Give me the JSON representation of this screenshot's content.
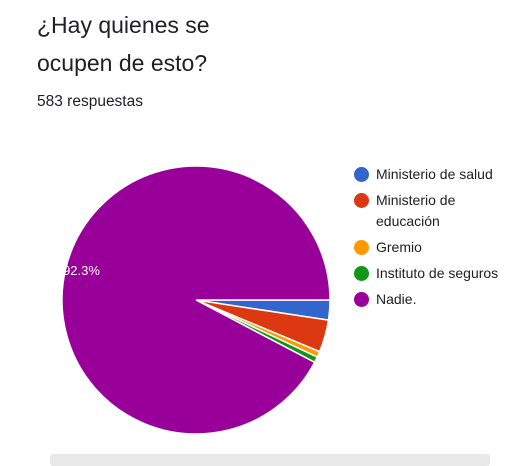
{
  "question": {
    "title": "¿Hay quienes se ocupen de esto?",
    "responses": "583 respuestas"
  },
  "chart_data": {
    "type": "pie",
    "categories": [
      "Ministerio de salud",
      "Ministerio de educación",
      "Gremio",
      "Instituto de seguros",
      "Nadie."
    ],
    "values": [
      2.4,
      3.9,
      0.7,
      0.7,
      92.3
    ],
    "colors": [
      "#3366cc",
      "#dc3912",
      "#ff9900",
      "#109618",
      "#990099"
    ],
    "data_labels": [
      "",
      "",
      "",
      "",
      "92.3%"
    ],
    "legend_position": "right"
  }
}
